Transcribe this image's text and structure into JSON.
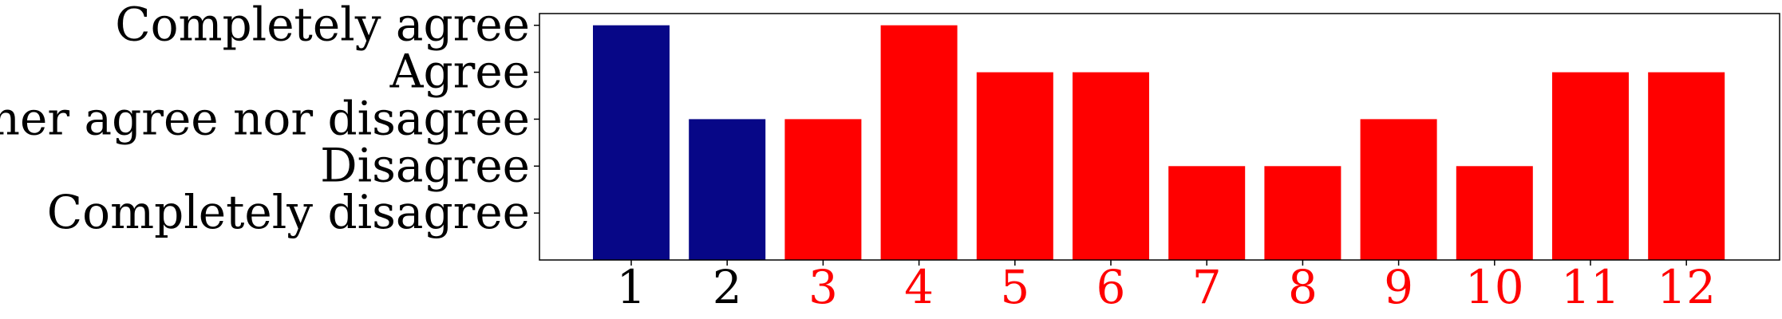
{
  "chart_data": {
    "type": "bar",
    "categories": [
      "1",
      "2",
      "3",
      "4",
      "5",
      "6",
      "7",
      "8",
      "9",
      "10",
      "11",
      "12"
    ],
    "values": [
      5,
      3,
      3,
      5,
      4,
      4,
      2,
      2,
      3,
      2,
      4,
      4
    ],
    "bar_colors": [
      "#070787",
      "#070787",
      "#ff0000",
      "#ff0000",
      "#ff0000",
      "#ff0000",
      "#ff0000",
      "#ff0000",
      "#ff0000",
      "#ff0000",
      "#ff0000",
      "#ff0000"
    ],
    "xtick_colors": [
      "#000000",
      "#000000",
      "#ff0000",
      "#ff0000",
      "#ff0000",
      "#ff0000",
      "#ff0000",
      "#ff0000",
      "#ff0000",
      "#ff0000",
      "#ff0000",
      "#ff0000"
    ],
    "yticks": [
      {
        "value": 1,
        "label": "Completely disagree"
      },
      {
        "value": 2,
        "label": "Disagree"
      },
      {
        "value": 3,
        "label": "Neither agree nor disagree"
      },
      {
        "value": 4,
        "label": "Agree"
      },
      {
        "value": 5,
        "label": "Completely agree"
      }
    ],
    "ylim": [
      0,
      5.25
    ],
    "title": "",
    "xlabel": "",
    "ylabel": "",
    "grid": false,
    "legend": false
  }
}
